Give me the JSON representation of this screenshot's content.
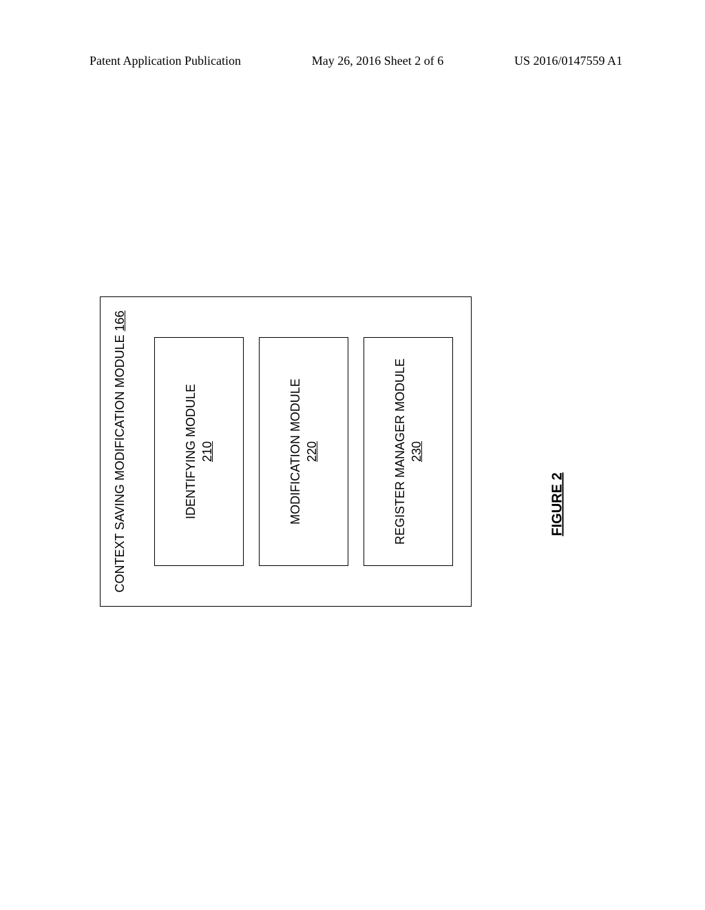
{
  "header": {
    "left": "Patent Application Publication",
    "center": "May 26, 2016  Sheet 2 of 6",
    "right": "US 2016/0147559 A1"
  },
  "diagram": {
    "outer_label": "CONTEXT SAVING MODIFICATION MODULE",
    "outer_number": "166",
    "boxes": [
      {
        "label": "IDENTIFYING MODULE",
        "number": "210"
      },
      {
        "label": "MODIFICATION MODULE",
        "number": "220"
      },
      {
        "label": "REGISTER MANAGER MODULE",
        "number": "230"
      }
    ],
    "box_border_color": "#000000",
    "background_color": "#ffffff",
    "font_family": "Arial",
    "title_fontsize": 18,
    "box_fontsize": 18
  },
  "figure": {
    "caption": "FIGURE 2"
  }
}
